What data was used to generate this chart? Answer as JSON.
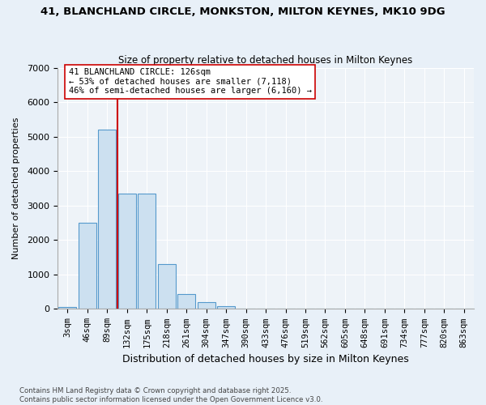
{
  "title_line1": "41, BLANCHLAND CIRCLE, MONKSTON, MILTON KEYNES, MK10 9DG",
  "title_line2": "Size of property relative to detached houses in Milton Keynes",
  "xlabel": "Distribution of detached houses by size in Milton Keynes",
  "ylabel": "Number of detached properties",
  "footer_line1": "Contains HM Land Registry data © Crown copyright and database right 2025.",
  "footer_line2": "Contains public sector information licensed under the Open Government Licence v3.0.",
  "bin_labels": [
    "3sqm",
    "46sqm",
    "89sqm",
    "132sqm",
    "175sqm",
    "218sqm",
    "261sqm",
    "304sqm",
    "347sqm",
    "390sqm",
    "433sqm",
    "476sqm",
    "519sqm",
    "562sqm",
    "605sqm",
    "648sqm",
    "691sqm",
    "734sqm",
    "777sqm",
    "820sqm",
    "863sqm"
  ],
  "bar_values": [
    60,
    2500,
    5200,
    3350,
    3350,
    1300,
    430,
    200,
    80,
    10,
    5,
    2,
    1,
    0,
    0,
    0,
    0,
    0,
    0,
    0,
    0
  ],
  "bar_color": "#cce0f0",
  "bar_edge_color": "#5599cc",
  "vline_color": "#cc0000",
  "vline_pos": 2.5,
  "ylim": [
    0,
    7000
  ],
  "yticks": [
    0,
    1000,
    2000,
    3000,
    4000,
    5000,
    6000,
    7000
  ],
  "annotation_text": "41 BLANCHLAND CIRCLE: 126sqm\n← 53% of detached houses are smaller (7,118)\n46% of semi-detached houses are larger (6,160) →",
  "annotation_box_color": "#ffffff",
  "annotation_box_edgecolor": "#cc0000",
  "bg_color": "#e8f0f8",
  "plot_bg_color": "#eef3f8",
  "grid_color": "#ffffff"
}
